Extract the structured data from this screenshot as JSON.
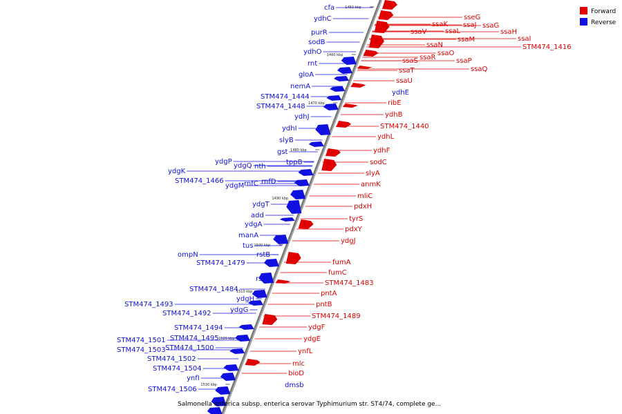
{
  "legend": [
    {
      "label": "Forward",
      "color": "#e00000"
    },
    {
      "label": "Reverse",
      "color": "#1010e0"
    }
  ],
  "footer": "Salmonella enterica subsp. enterica serovar Typhimurium str. ST4/74, complete ge...",
  "ticks": [
    "1450 kbp",
    "1460 kbp",
    "1470 kbp",
    "1480 kbp",
    "1490 kbp",
    "1500 kbp",
    "1510 kbp",
    "1520 kbp",
    "1530 kbp"
  ],
  "forward_labels": [
    "sseG",
    "ssaK",
    "ssaJ",
    "ssaG",
    "ssaH",
    "ssaL",
    "ssaI",
    "ssaV",
    "ssaM",
    "STM474_1416",
    "ssaN",
    "ssaO",
    "ssaS",
    "ssaR",
    "ssaP",
    "ssaT",
    "ssaQ",
    "ssaU",
    "ribE",
    "ydhB",
    "STM474_1440",
    "ydhL",
    "ydhF",
    "sodC",
    "slyA",
    "anmK",
    "mliC",
    "pdxH",
    "tyrS",
    "pdxY",
    "ydgJ",
    "fumA",
    "fumC",
    "STM474_1483",
    "pntA",
    "pntB",
    "STM474_1489",
    "ydgF",
    "ydgE",
    "ynfL",
    "mlc",
    "bioD"
  ],
  "reverse_labels": [
    "cfa",
    "ydhC",
    "purR",
    "sodB",
    "ydhO",
    "rnt",
    "gloA",
    "nemA",
    "STM474_1444",
    "STM474_1448",
    "ydhJ",
    "ydhI",
    "slyB",
    "gst",
    "tppB",
    "ydgP",
    "ydgQ",
    "nth",
    "ydgK",
    "STM474_1466",
    "rnfC",
    "rnfD",
    "ydgM",
    "ydgT",
    "add",
    "ydgA",
    "manA",
    "tus",
    "ompN",
    "rstB",
    "STM474_1479",
    "rstA",
    "STM474_1484",
    "ydgH",
    "STM474_1493",
    "ydgG",
    "STM474_1492",
    "STM474_1494",
    "STM474_1495",
    "STM474_1501",
    "STM474_1500",
    "STM474_1503",
    "STM474_1502",
    "STM474_1504",
    "ynfI",
    "STM474_1506",
    "ydhE",
    "dmsb"
  ]
}
